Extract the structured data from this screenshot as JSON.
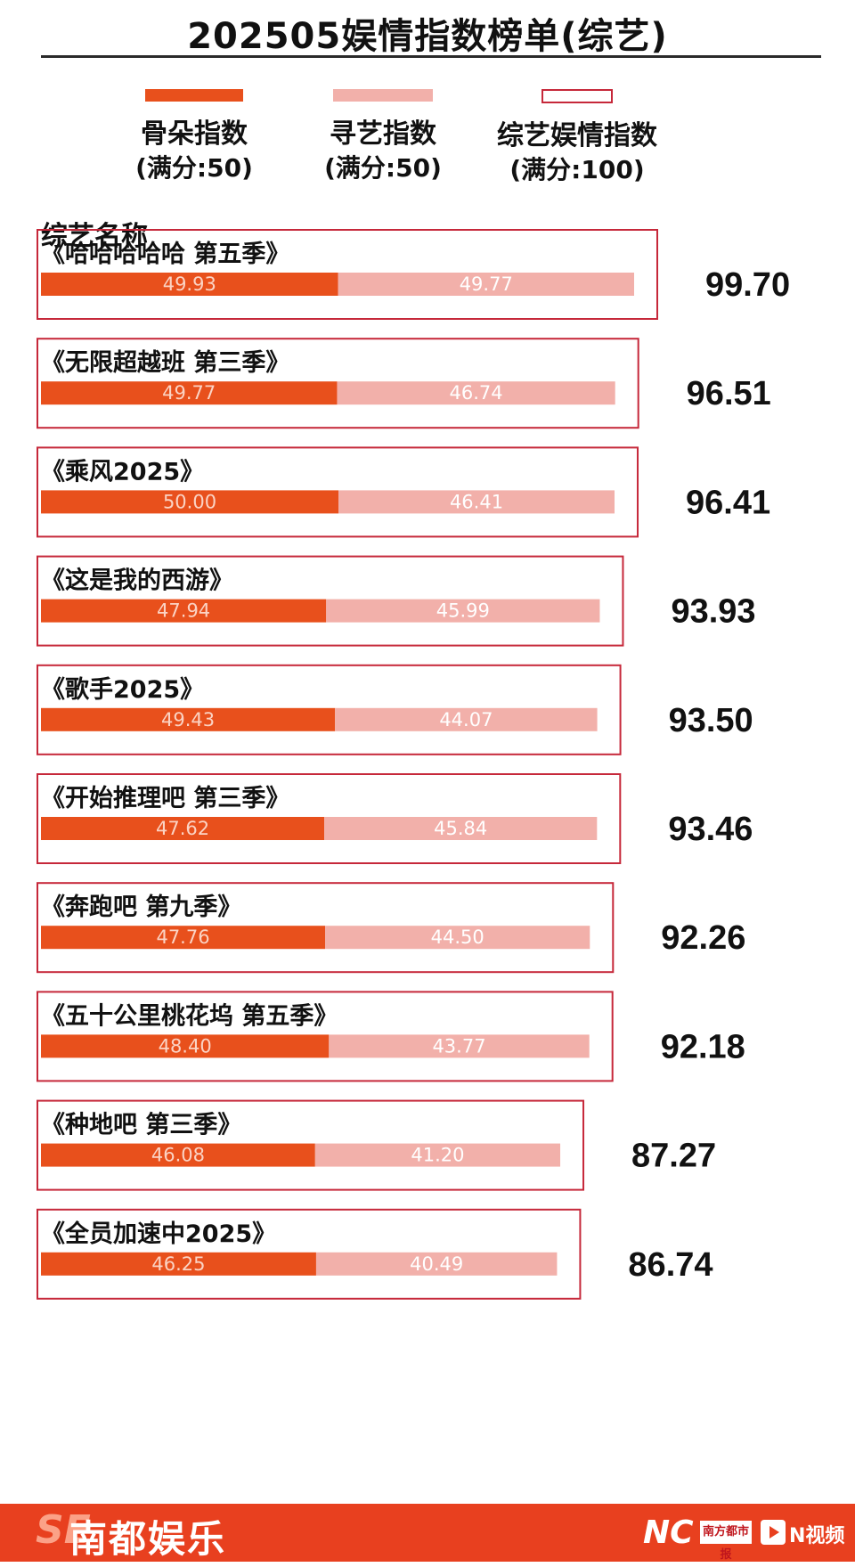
{
  "title": "202505娱情指数榜单(综艺)",
  "legend": [
    {
      "label": "骨朵指数",
      "sub": "(满分:50)",
      "color": "#e8501c",
      "kind": "fill"
    },
    {
      "label": "寻艺指数",
      "sub": "(满分:50)",
      "color": "#f2b0aa",
      "kind": "fill"
    },
    {
      "label": "综艺娱情指数",
      "sub": "(满分:100)",
      "color": "#c6283a",
      "kind": "outline"
    }
  ],
  "section_label": "综艺名称",
  "colors": {
    "gudo": "#e8501c",
    "xunyi": "#f2b0aa",
    "outline": "#c6283a",
    "footer": "#e8401f"
  },
  "chart_data": {
    "type": "bar",
    "orientation": "horizontal",
    "stacked": true,
    "categories": [
      "《哈哈哈哈哈 第五季》",
      "《无限超越班 第三季》",
      "《乘风2025》",
      "《这是我的西游》",
      "《歌手2025》",
      "《开始推理吧 第三季》",
      "《奔跑吧 第九季》",
      "《五十公里桃花坞 第五季》",
      "《种地吧 第三季》",
      "《全员加速中2025》"
    ],
    "series": [
      {
        "name": "骨朵指数",
        "values": [
          49.93,
          49.77,
          50.0,
          47.94,
          49.43,
          47.62,
          47.76,
          48.4,
          46.08,
          46.25
        ]
      },
      {
        "name": "寻艺指数",
        "values": [
          49.77,
          46.74,
          46.41,
          45.99,
          44.07,
          45.84,
          44.5,
          43.77,
          41.2,
          40.49
        ]
      }
    ],
    "totals": [
      "99.70",
      "96.51",
      "96.41",
      "93.93",
      "93.50",
      "93.46",
      "92.26",
      "92.18",
      "87.27",
      "86.74"
    ],
    "value_labels": [
      [
        "49.93",
        "49.77"
      ],
      [
        "49.77",
        "46.74"
      ],
      [
        "50.00",
        "46.41"
      ],
      [
        "47.94",
        "45.99"
      ],
      [
        "49.43",
        "44.07"
      ],
      [
        "47.62",
        "45.84"
      ],
      [
        "47.76",
        "44.50"
      ],
      [
        "48.40",
        "43.77"
      ],
      [
        "46.08",
        "41.20"
      ],
      [
        "46.25",
        "40.49"
      ]
    ],
    "ylabel": "综艺名称",
    "total_scale_max": 100
  },
  "footer": {
    "brand_mark": "SE",
    "brand": "南都娱乐",
    "nc_logo": "NC",
    "paper_logo": "南方都市报",
    "video_label": "N视频"
  }
}
